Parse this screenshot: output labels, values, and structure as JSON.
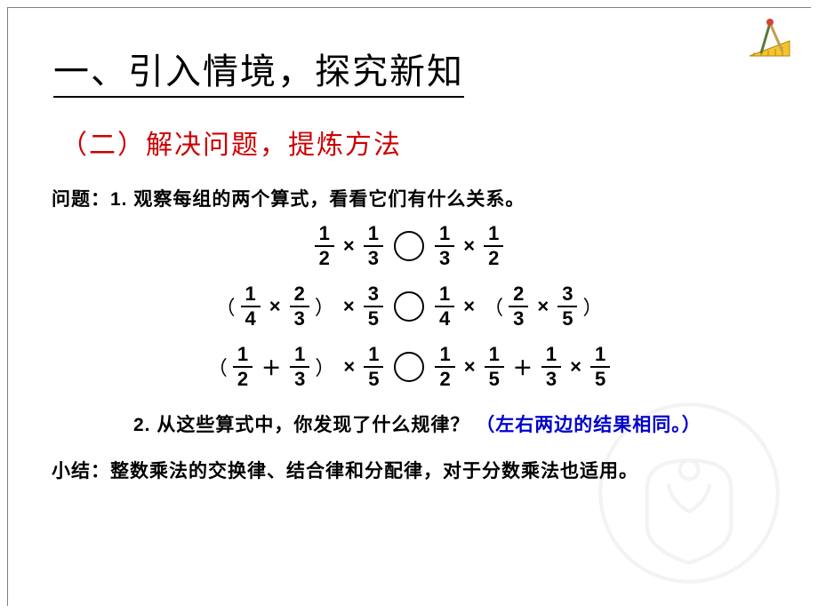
{
  "title": "一、引入情境，探究新知",
  "subtitle": "（二）解决问题，提炼方法",
  "question1": "问题：1. 观察每组的两个算式，看看它们有什么关系。",
  "eq1": {
    "l": [
      {
        "n": "1",
        "d": "2"
      },
      "×",
      {
        "n": "1",
        "d": "3"
      }
    ],
    "r": [
      {
        "n": "1",
        "d": "3"
      },
      "×",
      {
        "n": "1",
        "d": "2"
      }
    ]
  },
  "eq2": {
    "l": [
      "（",
      {
        "n": "1",
        "d": "4"
      },
      "×",
      {
        "n": "2",
        "d": "3"
      },
      "）",
      "×",
      {
        "n": "3",
        "d": "5"
      }
    ],
    "r": [
      {
        "n": "1",
        "d": "4"
      },
      "×",
      "（",
      {
        "n": "2",
        "d": "3"
      },
      "×",
      {
        "n": "3",
        "d": "5"
      },
      "）"
    ]
  },
  "eq3": {
    "l": [
      "（",
      {
        "n": "1",
        "d": "2"
      },
      "＋",
      {
        "n": "1",
        "d": "3"
      },
      "）",
      "×",
      {
        "n": "1",
        "d": "5"
      }
    ],
    "r": [
      {
        "n": "1",
        "d": "2"
      },
      "×",
      {
        "n": "1",
        "d": "5"
      },
      "＋",
      {
        "n": "1",
        "d": "3"
      },
      "×",
      {
        "n": "1",
        "d": "5"
      }
    ]
  },
  "question2_prefix": "2. 从这些算式中，你发现了什么规律？",
  "question2_answer": "（左右两边的结果相同。）",
  "summary": "小结：整数乘法的交换律、结合律和分配律，对于分数乘法也适用。",
  "colors": {
    "title": "#000000",
    "subtitle": "#cc0000",
    "answer": "#0000cc",
    "frame": "#808080"
  }
}
